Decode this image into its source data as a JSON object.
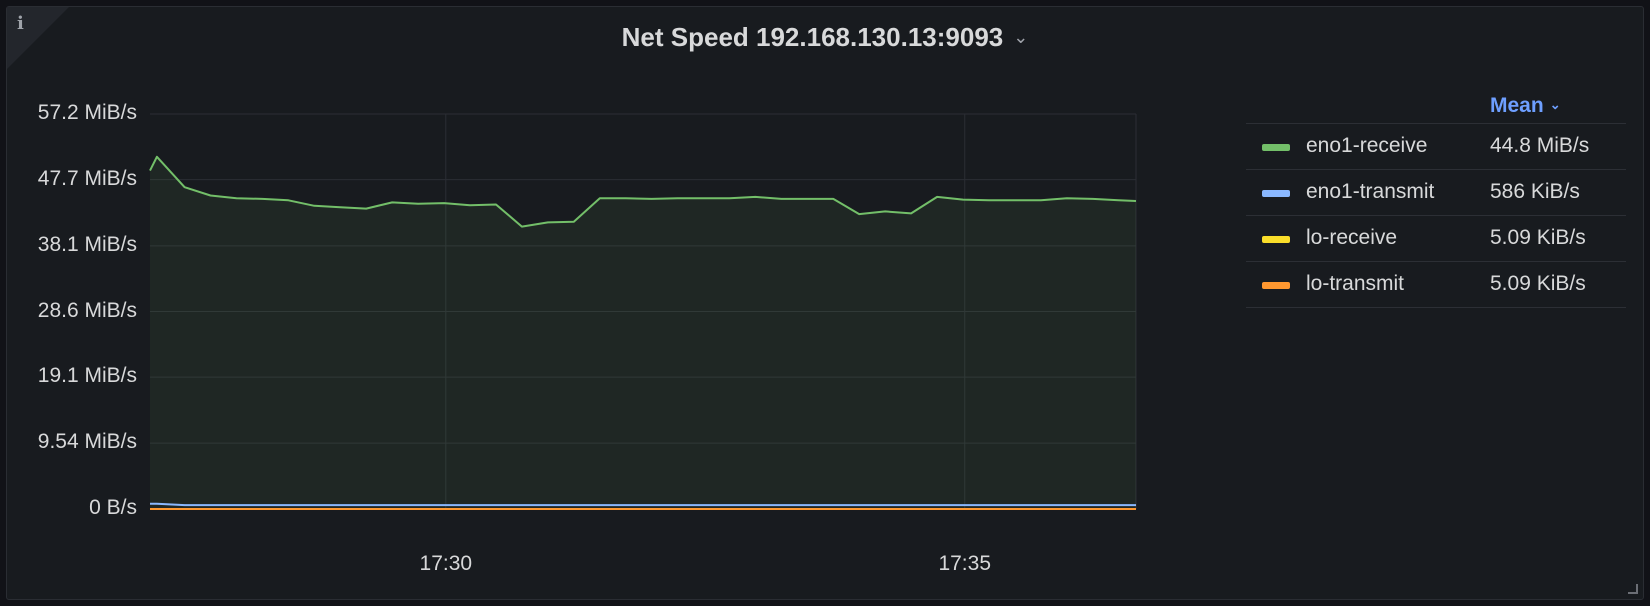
{
  "panel": {
    "title": "Net Speed 192.168.130.13:9093",
    "info_icon": "i",
    "menu_chevron": "⌄"
  },
  "legend": {
    "column_header": "Mean",
    "sort_icon": "⌄",
    "items": [
      {
        "name": "eno1-receive",
        "value": "44.8 MiB/s",
        "color": "#73bf69"
      },
      {
        "name": "eno1-transmit",
        "value": "586 KiB/s",
        "color": "#8ab8ff"
      },
      {
        "name": "lo-receive",
        "value": "5.09 KiB/s",
        "color": "#fade2a"
      },
      {
        "name": "lo-transmit",
        "value": "5.09 KiB/s",
        "color": "#ff9830"
      }
    ]
  },
  "chart_data": {
    "type": "area",
    "y_unit": "MiB/s",
    "ylim": [
      0,
      57.2
    ],
    "y_ticks": [
      {
        "value": 57.2,
        "label": "57.2 MiB/s"
      },
      {
        "value": 47.7,
        "label": "47.7 MiB/s"
      },
      {
        "value": 38.1,
        "label": "38.1 MiB/s"
      },
      {
        "value": 28.6,
        "label": "28.6 MiB/s"
      },
      {
        "value": 19.1,
        "label": "19.1 MiB/s"
      },
      {
        "value": 9.54,
        "label": "9.54 MiB/s"
      },
      {
        "value": 0,
        "label": "0 B/s"
      }
    ],
    "xlim": [
      "17:27:09",
      "17:36:39"
    ],
    "x_ticks": [
      {
        "time": "17:30",
        "label": "17:30"
      },
      {
        "time": "17:35",
        "label": "17:35"
      }
    ],
    "grid": true,
    "legend_position": "right",
    "series": [
      {
        "name": "eno1-receive",
        "color": "#73bf69",
        "fill": true,
        "x": [
          "17:27:09",
          "17:27:13",
          "17:27:29",
          "17:27:44",
          "17:27:59",
          "17:28:14",
          "17:28:29",
          "17:28:44",
          "17:28:59",
          "17:29:14",
          "17:29:29",
          "17:29:44",
          "17:29:59",
          "17:30:14",
          "17:30:29",
          "17:30:44",
          "17:30:59",
          "17:31:14",
          "17:31:29",
          "17:31:44",
          "17:31:59",
          "17:32:14",
          "17:32:29",
          "17:32:44",
          "17:32:59",
          "17:33:14",
          "17:33:29",
          "17:33:44",
          "17:33:59",
          "17:34:14",
          "17:34:29",
          "17:34:44",
          "17:34:59",
          "17:35:14",
          "17:35:29",
          "17:35:44",
          "17:35:59",
          "17:36:14",
          "17:36:29",
          "17:36:39"
        ],
        "values": [
          49.0,
          51.0,
          46.6,
          45.4,
          45.0,
          44.9,
          44.7,
          43.9,
          43.7,
          43.5,
          44.4,
          44.2,
          44.3,
          44.0,
          44.1,
          40.9,
          41.5,
          41.6,
          45.0,
          45.0,
          44.9,
          45.0,
          45.0,
          45.0,
          45.2,
          44.9,
          44.9,
          44.9,
          42.7,
          43.1,
          42.8,
          45.2,
          44.8,
          44.7,
          44.7,
          44.7,
          45.0,
          44.9,
          44.7,
          44.6
        ]
      },
      {
        "name": "eno1-transmit",
        "color": "#8ab8ff",
        "fill": false,
        "x": [
          "17:27:09",
          "17:27:13",
          "17:27:29",
          "17:36:39"
        ],
        "values": [
          0.75,
          0.75,
          0.57,
          0.57
        ]
      },
      {
        "name": "lo-receive",
        "color": "#fade2a",
        "fill": false,
        "x": [
          "17:27:09",
          "17:36:39"
        ],
        "values": [
          0.005,
          0.005
        ]
      },
      {
        "name": "lo-transmit",
        "color": "#ff9830",
        "fill": false,
        "x": [
          "17:27:09",
          "17:36:39"
        ],
        "values": [
          0.005,
          0.005
        ]
      }
    ]
  }
}
